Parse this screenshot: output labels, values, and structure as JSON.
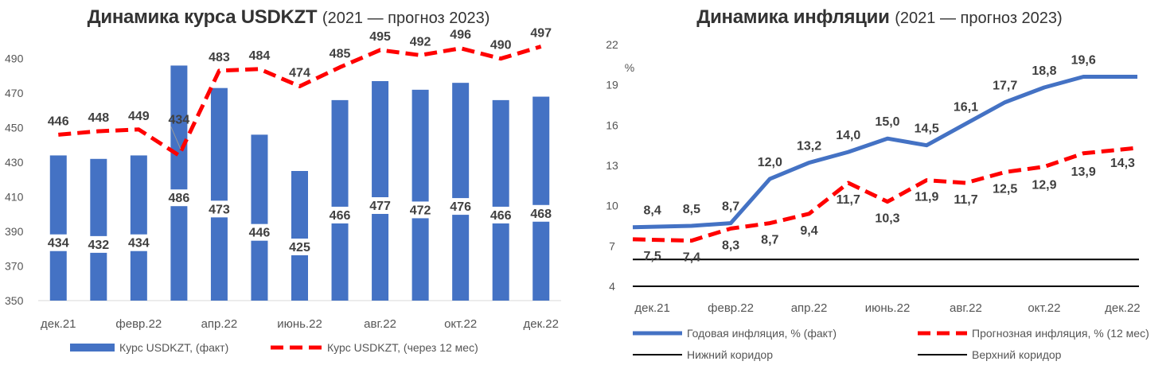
{
  "chart_data": [
    {
      "type": "bar",
      "title": "Динамика курса USDKZT",
      "subtitle": "(2021 — прогноз 2023)",
      "ylim": [
        350,
        500
      ],
      "yticks": [
        350,
        370,
        390,
        410,
        430,
        450,
        470,
        490
      ],
      "grid": false,
      "legend_position": "bottom",
      "x_tick_labels": [
        "дек.21",
        "февр.22",
        "апр.22",
        "июнь.22",
        "авг.22",
        "окт.22",
        "дек.22"
      ],
      "x_tick_indices": [
        0,
        2,
        4,
        6,
        8,
        10,
        12
      ],
      "series": [
        {
          "name": "Курс USDKZT, (факт)",
          "kind": "bar",
          "color": "#4472C4",
          "values": [
            434,
            432,
            434,
            486,
            473,
            446,
            425,
            466,
            477,
            472,
            476,
            466,
            468
          ]
        },
        {
          "name": "Курс USDKZT, (через 12 мес)",
          "kind": "line-dashed",
          "color": "#FF0000",
          "values": [
            446,
            448,
            449,
            434,
            483,
            484,
            474,
            485,
            495,
            492,
            496,
            490,
            497
          ]
        }
      ]
    },
    {
      "type": "line",
      "title": "Динамика инфляции",
      "subtitle": "(2021 — прогноз 2023)",
      "ylabel": "%",
      "ylim": [
        4,
        22
      ],
      "yticks": [
        4,
        7,
        10,
        13,
        16,
        19,
        22
      ],
      "grid": false,
      "legend_position": "bottom",
      "x_tick_labels": [
        "дек.21",
        "февр.22",
        "апр.22",
        "июнь.22",
        "авг.22",
        "окт.22",
        "дек.22"
      ],
      "x_tick_indices": [
        0,
        2,
        4,
        6,
        8,
        10,
        12
      ],
      "series": [
        {
          "name": "Годовая инфляция, % (факт)",
          "kind": "line",
          "color": "#4472C4",
          "values": [
            8.4,
            8.5,
            8.7,
            12.0,
            13.2,
            14.0,
            15.0,
            14.5,
            16.1,
            17.7,
            18.8,
            19.6,
            19.6
          ],
          "labels": [
            "8,4",
            "8,5",
            "8,7",
            "12,0",
            "13,2",
            "14,0",
            "15,0",
            "14,5",
            "16,1",
            "17,7",
            "18,8",
            "19,6",
            ""
          ]
        },
        {
          "name": "Прогнозная инфляция, % (12 мес)",
          "kind": "line-dashed",
          "color": "#FF0000",
          "values": [
            7.5,
            7.4,
            8.3,
            8.7,
            9.4,
            11.7,
            10.3,
            11.9,
            11.7,
            12.5,
            12.9,
            13.9,
            14.3
          ],
          "labels": [
            "7,5",
            "7,4",
            "8,3",
            "8,7",
            "9,4",
            "11,7",
            "10,3",
            "11,9",
            "11,7",
            "12,5",
            "12,9",
            "13,9",
            "14,3"
          ]
        },
        {
          "name": "Нижний коридор",
          "kind": "line-flat",
          "color": "#000000",
          "values": [
            4,
            4,
            4,
            4,
            4,
            4,
            4,
            4,
            4,
            4,
            4,
            4,
            4
          ]
        },
        {
          "name": "Верхний коридор",
          "kind": "line-flat",
          "color": "#000000",
          "values": [
            6,
            6,
            6,
            6,
            6,
            6,
            6,
            6,
            6,
            6,
            6,
            6,
            6
          ]
        }
      ]
    }
  ]
}
